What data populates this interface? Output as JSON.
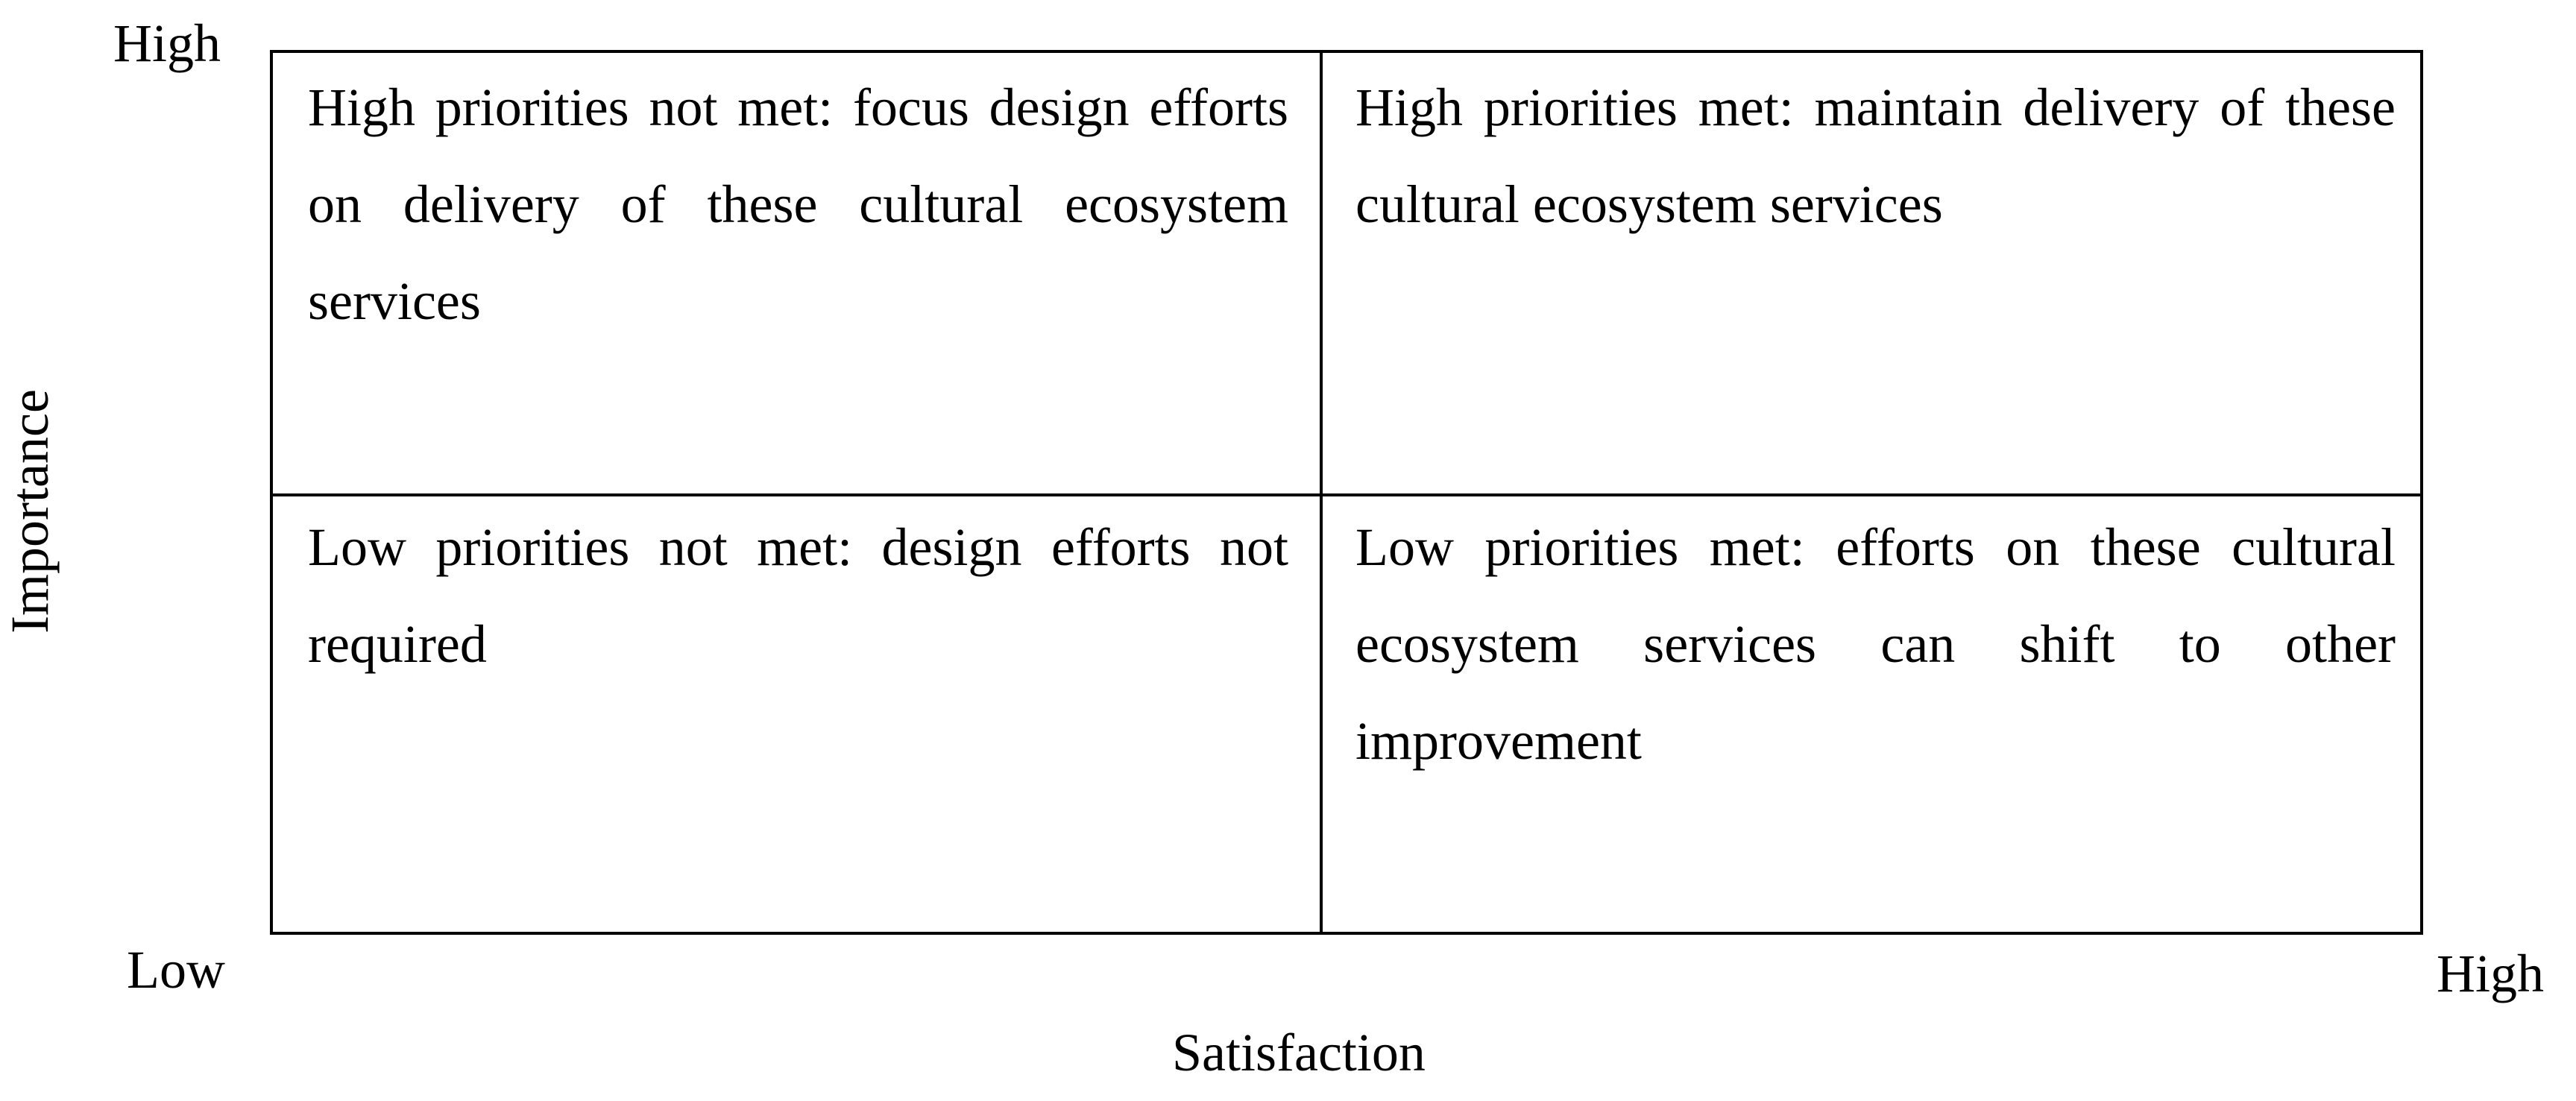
{
  "axes": {
    "y": {
      "label": "Importance",
      "high": "High",
      "low": "Low"
    },
    "x": {
      "label": "Satisfaction",
      "high": "High"
    }
  },
  "quadrants": {
    "high_importance_low_satisfaction": "High priorities not met: focus design efforts on delivery of these cultural ecosystem services",
    "high_importance_high_satisfaction": "High priorities met: maintain delivery of these cultural ecosystem services",
    "low_importance_low_satisfaction": "Low priorities not met: design efforts not required",
    "low_importance_high_satisfaction": "Low priorities met: efforts on these cultural ecosystem services can shift to other improvement"
  },
  "colors": {
    "text": "#000000",
    "lines": "#000000",
    "background": "#ffffff"
  }
}
